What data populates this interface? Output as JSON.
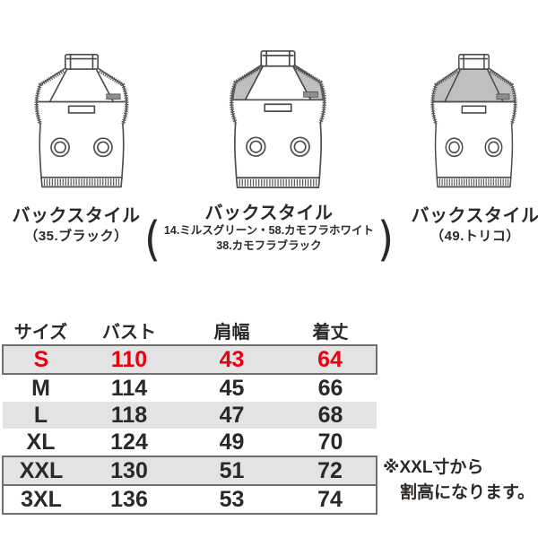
{
  "colors": {
    "outline": "#4b4b4b",
    "yoke_gray": "#bfbfbf",
    "rib": "#5a5a5a",
    "patch": "#8f8f8f",
    "accent_red": "#e60012",
    "row_shade": "#e3e3e3",
    "row_border": "#6f6f6f",
    "text": "#2b2826"
  },
  "figures": [
    {
      "caption": "バックスタイル",
      "sub": "（35.ブラック）",
      "variant": "plain"
    },
    {
      "caption": "バックスタイル",
      "sub_lines": [
        "14.ミルスグリーン・58.カモフラホワイト",
        "38.カモフラブラック"
      ],
      "paren_open": "(",
      "paren_close": ")",
      "variant": "gray-side"
    },
    {
      "caption": "バックスタイル",
      "sub": "（49.トリコ）",
      "variant": "gray-full"
    }
  ],
  "size_table": {
    "headers": [
      "サイズ",
      "バスト",
      "肩幅",
      "着丈"
    ],
    "rows": [
      {
        "size": "S",
        "bust": "110",
        "shoulder": "43",
        "length": "64",
        "accent": true,
        "shaded": true,
        "boxed": true
      },
      {
        "size": "M",
        "bust": "114",
        "shoulder": "45",
        "length": "66",
        "accent": false,
        "shaded": false,
        "boxed": false
      },
      {
        "size": "L",
        "bust": "118",
        "shoulder": "47",
        "length": "68",
        "accent": false,
        "shaded": true,
        "boxed": false
      },
      {
        "size": "XL",
        "bust": "124",
        "shoulder": "49",
        "length": "70",
        "accent": false,
        "shaded": false,
        "boxed": false
      },
      {
        "size": "XXL",
        "bust": "130",
        "shoulder": "51",
        "length": "72",
        "accent": false,
        "shaded": true,
        "boxed": true
      },
      {
        "size": "3XL",
        "bust": "136",
        "shoulder": "53",
        "length": "74",
        "accent": false,
        "shaded": false,
        "boxed": true
      }
    ]
  },
  "note": {
    "line1": "※XXL寸から",
    "line2": "割高になります。"
  }
}
